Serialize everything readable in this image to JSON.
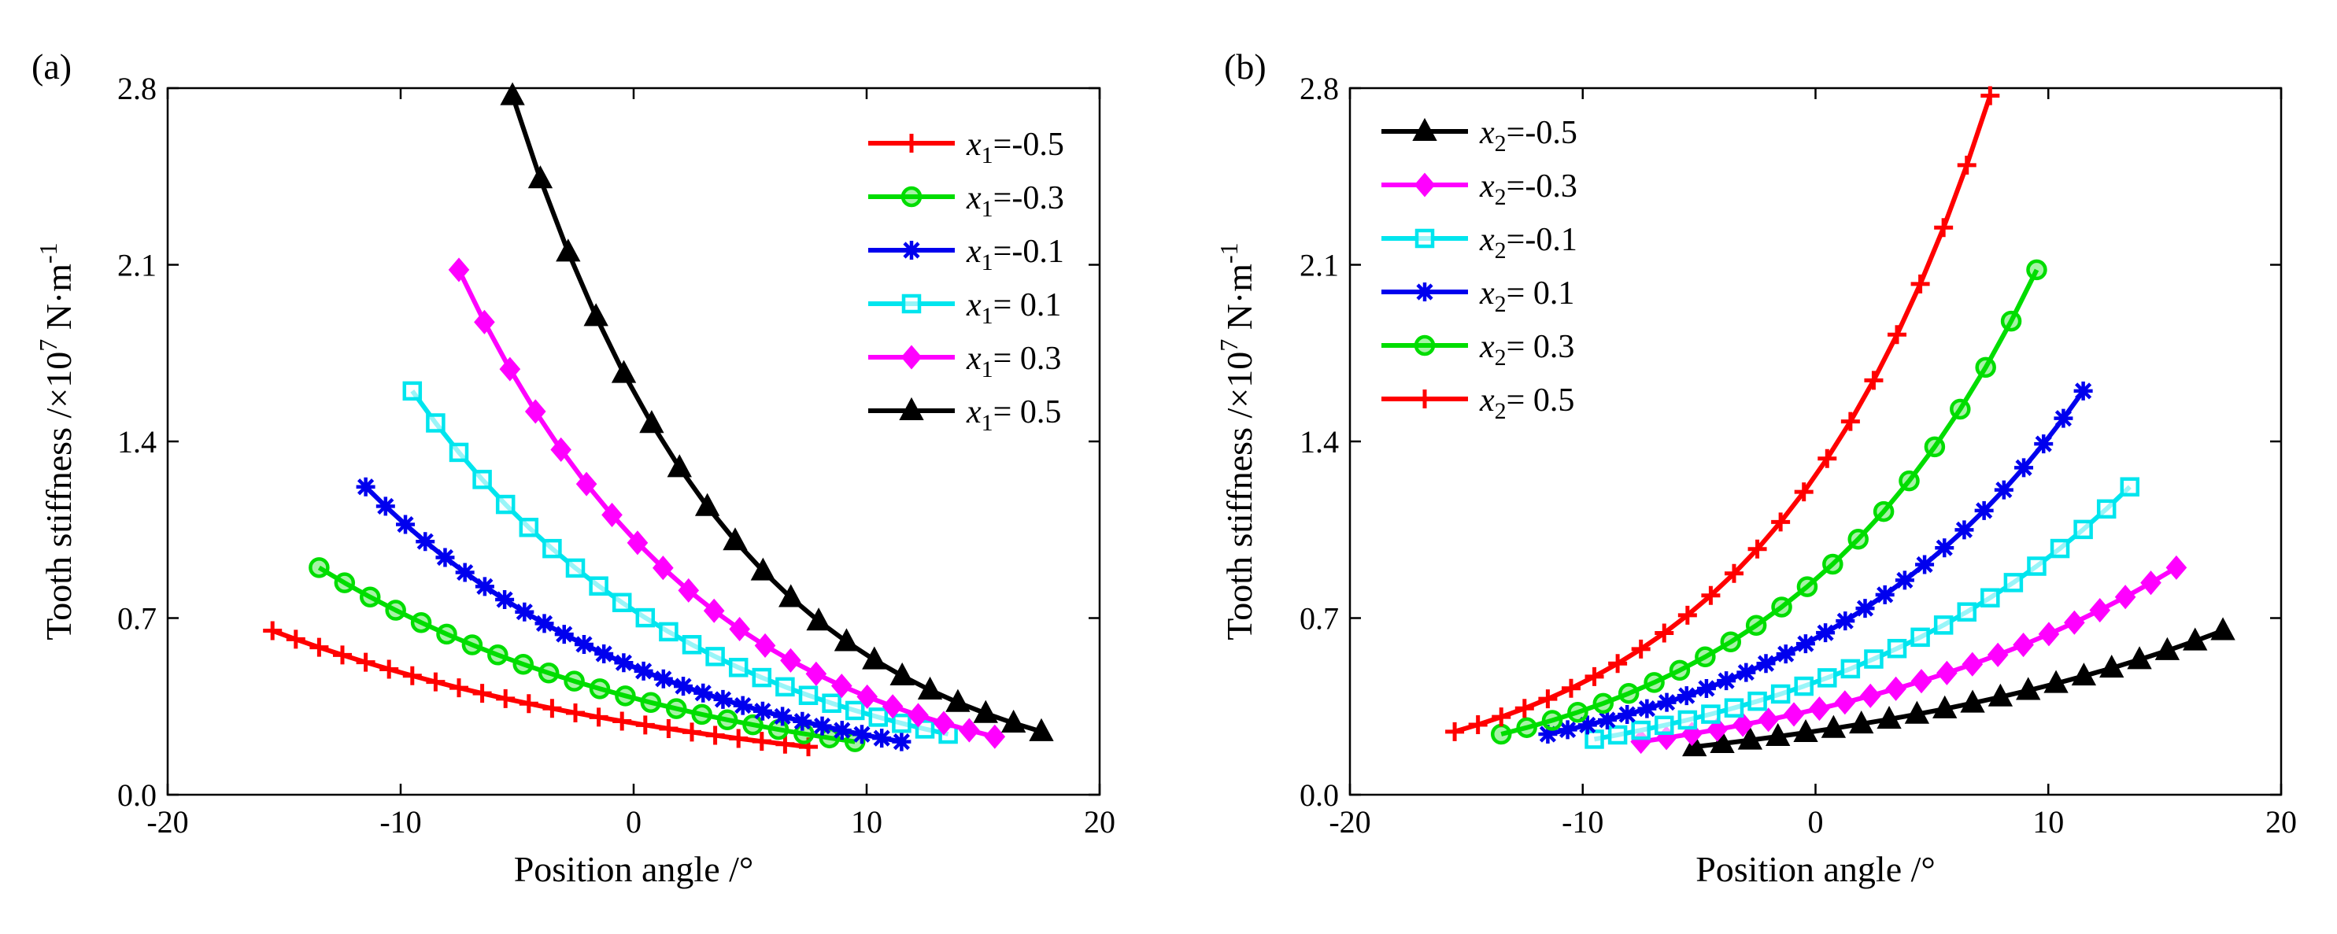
{
  "chart_data": [
    {
      "type": "line",
      "panel_label": "(a)",
      "xlabel": "Position angle /°",
      "ylabel_main": "Tooth stiffness /×10",
      "ylabel_exp": "7",
      "ylabel_unit": " N·m",
      "ylabel_unit_exp": "-1",
      "xlim": [
        -20,
        20
      ],
      "ylim": [
        0.0,
        2.8
      ],
      "xticks": [
        -20,
        -10,
        0,
        10,
        20
      ],
      "xtick_labels": [
        "-20",
        "-10",
        "0",
        "10",
        "20"
      ],
      "yticks": [
        0.0,
        0.7,
        1.4,
        2.1,
        2.8
      ],
      "ytick_labels": [
        "0.0",
        "0.7",
        "1.4",
        "2.1",
        "2.8"
      ],
      "legend_position": "top-right",
      "legend_var": "x",
      "legend_sub": "1",
      "series": [
        {
          "name": "-0.5",
          "legend_value": "=-0.5",
          "color": "#ff0000",
          "marker": "plus",
          "x_start": -15.5,
          "x_end": 7.5,
          "y_start": 0.65,
          "y_end": 0.19,
          "n": 24
        },
        {
          "name": "-0.3",
          "legend_value": "=-0.3",
          "color": "#00dd00",
          "marker": "circle",
          "x_start": -13.5,
          "x_end": 9.5,
          "y_start": 0.9,
          "y_end": 0.21,
          "n": 22
        },
        {
          "name": "-0.1",
          "legend_value": "=-0.1",
          "color": "#0000ee",
          "marker": "star",
          "x_start": -11.5,
          "x_end": 11.5,
          "y_start": 1.22,
          "y_end": 0.21,
          "n": 28
        },
        {
          "name": "0.1",
          "legend_value": "= 0.1",
          "color": "#00e5ee",
          "marker": "square",
          "x_start": -9.5,
          "x_end": 13.5,
          "y_start": 1.6,
          "y_end": 0.24,
          "n": 24
        },
        {
          "name": "0.3",
          "legend_value": "= 0.3",
          "color": "#ff00ff",
          "marker": "diamond",
          "x_start": -7.5,
          "x_end": 15.5,
          "y_start": 2.08,
          "y_end": 0.23,
          "n": 22
        },
        {
          "name": "0.5",
          "legend_value": "= 0.5",
          "color": "#000000",
          "marker": "triangle",
          "x_start": -5.2,
          "x_end": 17.5,
          "y_start": 2.77,
          "y_end": 0.25,
          "n": 20
        }
      ]
    },
    {
      "type": "line",
      "panel_label": "(b)",
      "xlabel": "Position angle /°",
      "ylabel_main": "Tooth stiffness /×10",
      "ylabel_exp": "7",
      "ylabel_unit": " N·m",
      "ylabel_unit_exp": "-1",
      "xlim": [
        -20,
        20
      ],
      "ylim": [
        0.0,
        2.8
      ],
      "xticks": [
        -20,
        -10,
        0,
        10,
        20
      ],
      "xtick_labels": [
        "-20",
        "-10",
        "0",
        "10",
        "20"
      ],
      "yticks": [
        0.0,
        0.7,
        1.4,
        2.1,
        2.8
      ],
      "ytick_labels": [
        "0.0",
        "0.7",
        "1.4",
        "2.1",
        "2.8"
      ],
      "legend_position": "top-left",
      "legend_var": "x",
      "legend_sub": "2",
      "series": [
        {
          "name": "-0.5",
          "legend_value": "=-0.5",
          "color": "#000000",
          "marker": "triangle",
          "x_start": -5.2,
          "x_end": 17.5,
          "y_start": 0.19,
          "y_end": 0.65,
          "n": 20
        },
        {
          "name": "-0.3",
          "legend_value": "=-0.3",
          "color": "#ff00ff",
          "marker": "diamond",
          "x_start": -7.5,
          "x_end": 15.5,
          "y_start": 0.21,
          "y_end": 0.9,
          "n": 22
        },
        {
          "name": "-0.1",
          "legend_value": "=-0.1",
          "color": "#00e5ee",
          "marker": "square",
          "x_start": -9.5,
          "x_end": 13.5,
          "y_start": 0.22,
          "y_end": 1.22,
          "n": 24
        },
        {
          "name": "0.1",
          "legend_value": "= 0.1",
          "color": "#0000ee",
          "marker": "star",
          "x_start": -11.5,
          "x_end": 11.5,
          "y_start": 0.24,
          "y_end": 1.6,
          "n": 28
        },
        {
          "name": "0.3",
          "legend_value": "= 0.3",
          "color": "#00dd00",
          "marker": "circle",
          "x_start": -13.5,
          "x_end": 9.5,
          "y_start": 0.24,
          "y_end": 2.08,
          "n": 22
        },
        {
          "name": "0.5",
          "legend_value": "= 0.5",
          "color": "#ff0000",
          "marker": "plus",
          "x_start": -15.5,
          "x_end": 7.5,
          "y_start": 0.25,
          "y_end": 2.77,
          "n": 24
        }
      ]
    }
  ]
}
